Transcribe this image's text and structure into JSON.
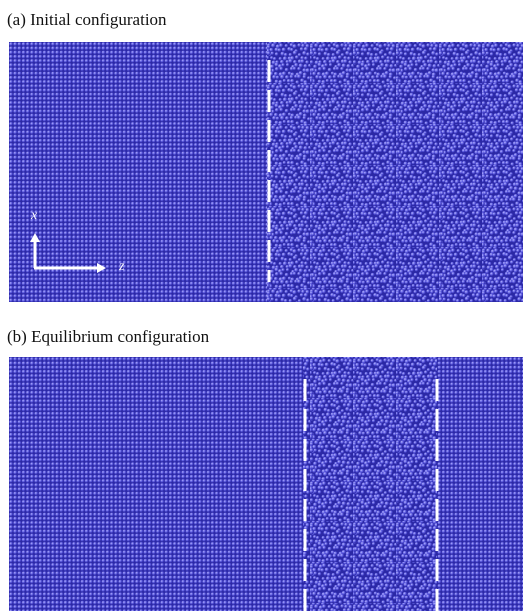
{
  "panels": [
    {
      "caption": "(a) Initial configuration",
      "regions": [
        {
          "state": "crystalline"
        },
        {
          "state": "disordered"
        }
      ]
    },
    {
      "caption": "(b) Equilibrium configuration",
      "regions": [
        {
          "state": "crystalline"
        },
        {
          "state": "disordered"
        },
        {
          "state": "crystalline"
        }
      ]
    }
  ],
  "axes": {
    "vertical": "x",
    "horizontal": "z"
  },
  "colors": {
    "atom": "#5a58e0",
    "atom_highlight": "#a9a8ff",
    "background": "#2a27a8",
    "marker_line": "#ffffff"
  }
}
